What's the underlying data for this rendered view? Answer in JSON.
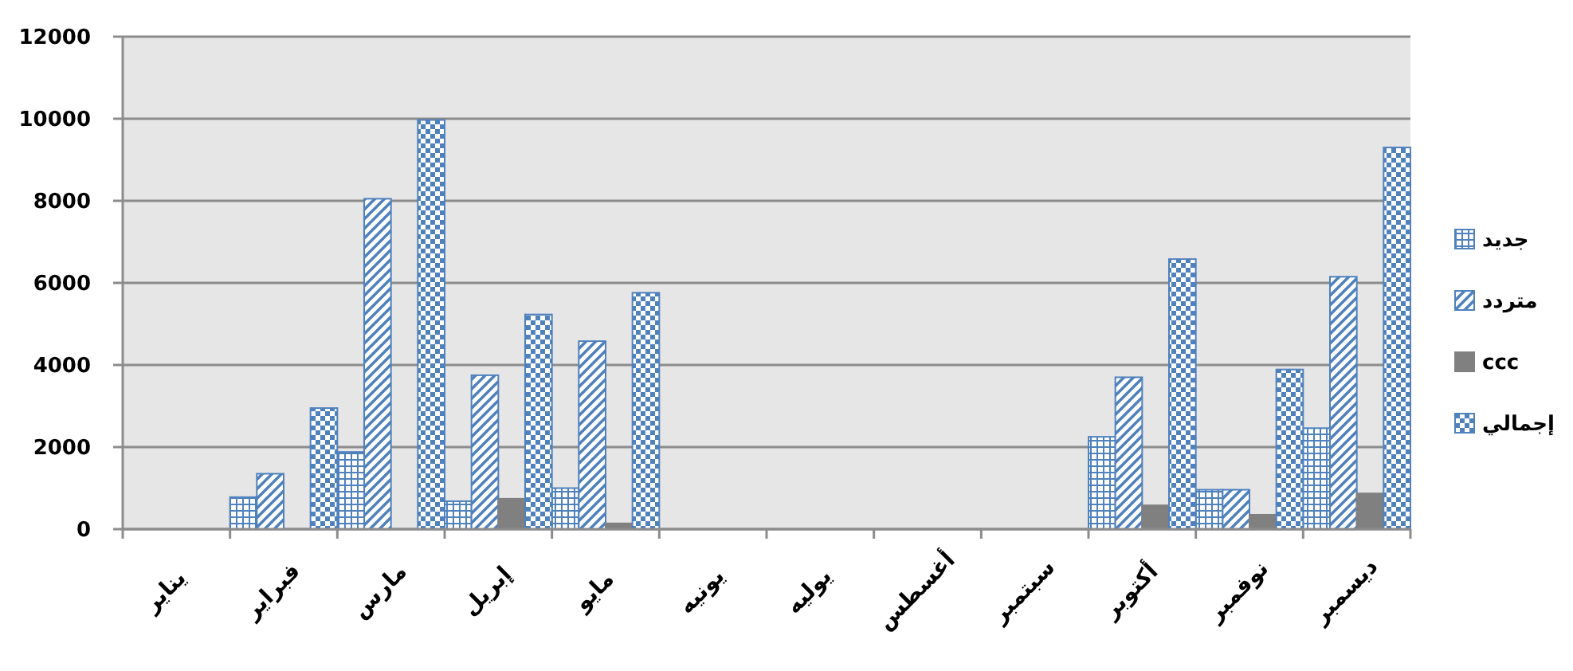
{
  "chart_data": {
    "type": "bar",
    "categories": [
      "يناير",
      "فبراير",
      "مارس",
      "إبريل",
      "مايو",
      "يونيه",
      "يوليه",
      "أغسطس",
      "سبتمبر",
      "أكتوبر",
      "نوفمبر",
      "ديسمبر"
    ],
    "series": [
      {
        "name": "جديد",
        "color": "#4f81bd",
        "values": [
          0,
          780,
          1880,
          680,
          1000,
          0,
          0,
          0,
          0,
          2250,
          960,
          2460
        ]
      },
      {
        "name": "متردد",
        "color": "#4f81bd",
        "values": [
          0,
          1350,
          8050,
          3750,
          4580,
          0,
          0,
          0,
          0,
          3700,
          960,
          6150
        ]
      },
      {
        "name": "ccc",
        "color": "#808080",
        "values": [
          0,
          0,
          0,
          740,
          140,
          0,
          0,
          0,
          0,
          580,
          350,
          870
        ]
      },
      {
        "name": "إجمالي",
        "color": "#4f81bd",
        "values": [
          0,
          2950,
          9970,
          5230,
          5760,
          0,
          0,
          0,
          0,
          6580,
          3890,
          9300
        ]
      }
    ],
    "ylim": [
      0,
      12000
    ],
    "yticks": [
      0,
      2000,
      4000,
      6000,
      8000,
      10000,
      12000
    ],
    "grid": "y",
    "legend": "right"
  }
}
